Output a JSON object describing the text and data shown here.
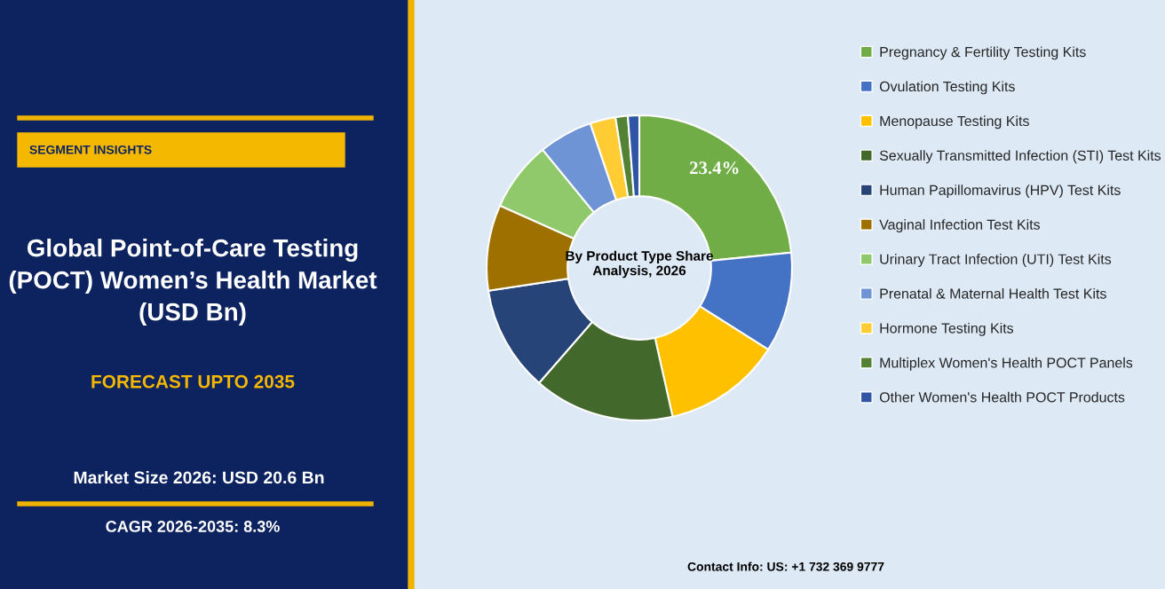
{
  "chart_data": {
    "type": "donut",
    "title": "Global Point-of-Care Testing (POCT) Women’s Health Market (USD Bn)",
    "subtitle": "FORECAST UPTO 2035",
    "categories": [
      "Pregnancy & Fertility Testing Kits",
      "Ovulation Testing Kits",
      "Menopause Testing Kits",
      "Sexually Transmitted Infection (STI) Test Kits",
      "Human Papillomavirus (HPV) Test Kits",
      "Vaginal Infection Test Kits",
      "Urinary Tract Infection (UTI) Test Kits",
      "Prenatal & Maternal Health Test Kits",
      "Hormone Testing Kits",
      "Multiplex Women's Health POCT Panels",
      "Other Women's Health POCT Products"
    ],
    "values": [
      23.4,
      10.6,
      12.5,
      14.9,
      11.2,
      9.1,
      7.4,
      5.7,
      2.7,
      1.3,
      1.2
    ],
    "colors": [
      "#70ad47",
      "#4472c4",
      "#ffc000",
      "#43682b",
      "#264478",
      "#9e7000",
      "#8fc96b",
      "#6f94d6",
      "#ffcd33",
      "#548235",
      "#2f55a4"
    ],
    "value_labels": [
      "23.4%",
      null,
      null,
      null,
      null,
      null,
      null,
      null,
      null,
      null,
      null
    ],
    "legend": "right",
    "annotations": [
      "SEGMENT INSIGHTS",
      "Market Size 2026: USD 20.6 Bn",
      "CAGR 2026-2035: 8.3%",
      "By Product Type Share Analysis, 2026",
      "Contact Info: US: +1 732 369 9777"
    ]
  }
}
